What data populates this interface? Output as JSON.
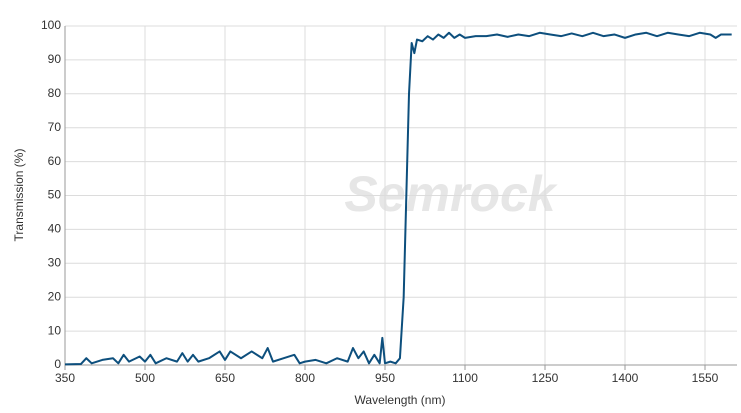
{
  "chart_data": {
    "type": "line",
    "watermark": "Semrock",
    "x_label": "Wavelength (nm)",
    "y_label": "Transmission (%)",
    "x": [
      350,
      380,
      390,
      400,
      420,
      440,
      450,
      460,
      470,
      490,
      500,
      510,
      520,
      540,
      560,
      570,
      580,
      590,
      600,
      620,
      640,
      650,
      660,
      680,
      700,
      720,
      730,
      740,
      760,
      780,
      790,
      800,
      820,
      840,
      860,
      880,
      890,
      900,
      910,
      920,
      930,
      940,
      945,
      950,
      960,
      970,
      978,
      985,
      990,
      995,
      1000,
      1005,
      1010,
      1020,
      1030,
      1040,
      1050,
      1060,
      1070,
      1080,
      1090,
      1100,
      1120,
      1140,
      1160,
      1180,
      1200,
      1220,
      1240,
      1260,
      1280,
      1300,
      1320,
      1340,
      1360,
      1380,
      1400,
      1420,
      1440,
      1460,
      1480,
      1500,
      1520,
      1540,
      1560,
      1570,
      1580,
      1600
    ],
    "values": [
      0.2,
      0.3,
      2,
      0.5,
      1.5,
      2,
      0.5,
      3,
      1,
      2.5,
      1,
      3,
      0.5,
      2,
      1,
      3.5,
      1,
      3,
      1,
      2,
      4,
      1.5,
      4,
      2,
      4,
      2,
      5,
      1,
      2,
      3,
      0.5,
      1,
      1.5,
      0.5,
      2,
      1,
      5,
      2,
      4,
      0.5,
      3,
      0.5,
      8,
      0.5,
      1,
      0.5,
      2,
      20,
      50,
      80,
      95,
      92,
      96,
      95.5,
      97,
      96,
      97.5,
      96.5,
      98,
      96.5,
      97.5,
      96.5,
      97,
      97,
      97.5,
      96.8,
      97.5,
      97,
      98,
      97.5,
      97,
      97.8,
      97,
      98,
      97,
      97.5,
      96.5,
      97.5,
      98,
      97,
      98,
      97.5,
      97,
      98,
      97.5,
      96.5,
      97.5,
      97.5
    ],
    "color": "#0d4f7d",
    "xlim": [
      350,
      1610
    ],
    "ylim": [
      0,
      100
    ],
    "xticks": [
      350,
      500,
      650,
      800,
      950,
      1100,
      1250,
      1400,
      1550
    ],
    "yticks": [
      0,
      10,
      20,
      30,
      40,
      50,
      60,
      70,
      80,
      90,
      100
    ],
    "grid": true
  }
}
